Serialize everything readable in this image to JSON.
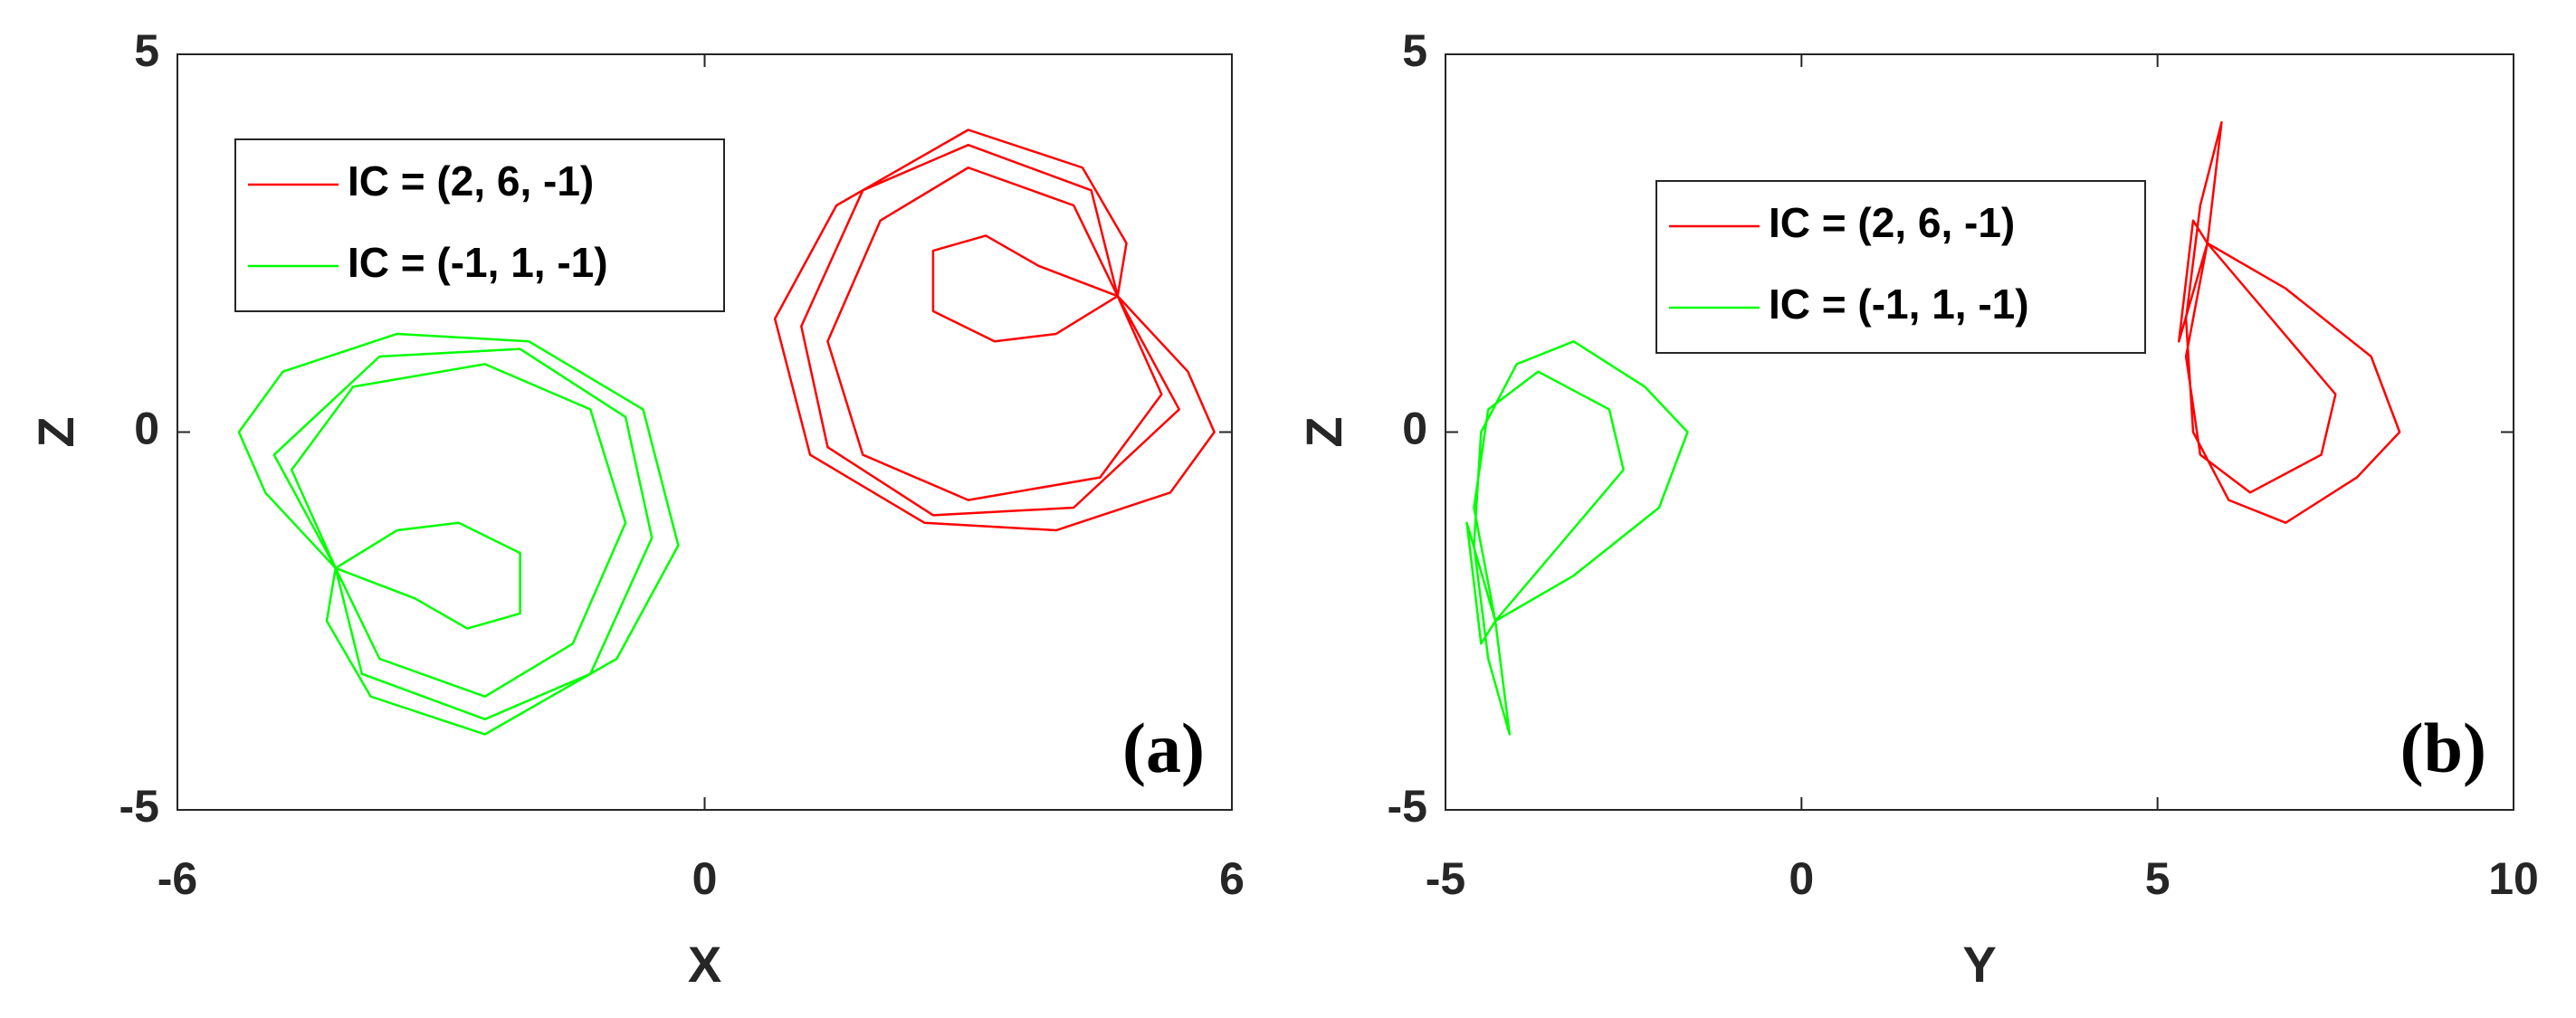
{
  "chart_data": [
    {
      "type": "line",
      "xlabel": "X",
      "ylabel": "Z",
      "annotation": "(a)",
      "xlim": [
        -6,
        6
      ],
      "ylim": [
        -5,
        5
      ],
      "xticks": [
        -6,
        0,
        6
      ],
      "yticks": [
        -5,
        0,
        5
      ],
      "legend": "upper left",
      "series": [
        {
          "name": "IC = (2, 6, -1)",
          "color": "#ff0000",
          "x": [
            4.7,
            5.5,
            5.8,
            5.3,
            4.0,
            2.5,
            1.2,
            0.8,
            1.5,
            3.0,
            4.3,
            4.8,
            4.7,
            5.2,
            4.5,
            3.0,
            1.8,
            1.4,
            2.0,
            3.0,
            4.2,
            4.7,
            4.0,
            3.3,
            2.6,
            2.6,
            3.2,
            3.8,
            4.7,
            5.4,
            4.2,
            2.6,
            1.4,
            1.1,
            1.8,
            3.0,
            4.4,
            4.7
          ],
          "values": [
            1.8,
            0.8,
            0.0,
            -0.8,
            -1.3,
            -1.2,
            -0.3,
            1.5,
            3.0,
            4.0,
            3.5,
            2.5,
            1.8,
            0.5,
            -0.6,
            -0.9,
            -0.3,
            1.2,
            2.8,
            3.5,
            3.0,
            1.8,
            1.3,
            1.2,
            1.6,
            2.4,
            2.6,
            2.2,
            1.8,
            0.3,
            -1.0,
            -1.1,
            -0.2,
            1.4,
            3.2,
            3.8,
            3.2,
            1.8
          ]
        },
        {
          "name": "IC = (-1, 1, -1)",
          "color": "#00ff00",
          "x": [
            -4.2,
            -5.0,
            -5.3,
            -4.8,
            -3.5,
            -2.0,
            -0.7,
            -0.3,
            -1.0,
            -2.5,
            -3.8,
            -4.3,
            -4.2,
            -4.7,
            -4.0,
            -2.5,
            -1.3,
            -0.9,
            -1.5,
            -2.5,
            -3.7,
            -4.2,
            -3.5,
            -2.8,
            -2.1,
            -2.1,
            -2.7,
            -3.3,
            -4.2,
            -4.9,
            -3.7,
            -2.1,
            -0.9,
            -0.6,
            -1.3,
            -2.5,
            -3.9,
            -4.2
          ],
          "values": [
            -1.8,
            -0.8,
            0.0,
            0.8,
            1.3,
            1.2,
            0.3,
            -1.5,
            -3.0,
            -4.0,
            -3.5,
            -2.5,
            -1.8,
            -0.5,
            0.6,
            0.9,
            0.3,
            -1.2,
            -2.8,
            -3.5,
            -3.0,
            -1.8,
            -1.3,
            -1.2,
            -1.6,
            -2.4,
            -2.6,
            -2.2,
            -1.8,
            -0.3,
            1.0,
            1.1,
            0.2,
            -1.4,
            -3.2,
            -3.8,
            -3.2,
            -1.8
          ]
        }
      ]
    },
    {
      "type": "line",
      "xlabel": "Y",
      "ylabel": "Z",
      "annotation": "(b)",
      "xlim": [
        -5,
        10
      ],
      "ylim": [
        -5,
        5
      ],
      "xticks": [
        -5,
        0,
        5,
        10
      ],
      "yticks": [
        -5,
        0,
        5
      ],
      "legend": "upper center",
      "series": [
        {
          "name": "IC = (2, 6, -1)",
          "color": "#ff0000",
          "x": [
            5.7,
            5.9,
            5.6,
            5.4,
            5.5,
            6.0,
            6.8,
            7.8,
            8.4,
            8.0,
            6.8,
            5.7,
            5.4,
            5.6,
            6.3,
            7.3,
            7.5,
            6.6,
            5.7,
            5.3,
            5.5,
            5.7
          ],
          "values": [
            2.5,
            4.1,
            3.0,
            1.5,
            0.0,
            -0.9,
            -1.2,
            -0.6,
            0.0,
            1.0,
            1.9,
            2.5,
            1.0,
            -0.3,
            -0.8,
            -0.3,
            0.5,
            1.5,
            2.5,
            1.2,
            2.8,
            2.5
          ]
        },
        {
          "name": "IC = (-1, 1, -1)",
          "color": "#00ff00",
          "x": [
            -4.3,
            -4.1,
            -4.4,
            -4.6,
            -4.5,
            -4.0,
            -3.2,
            -2.2,
            -1.6,
            -2.0,
            -3.2,
            -4.3,
            -4.6,
            -4.4,
            -3.7,
            -2.7,
            -2.5,
            -3.4,
            -4.3,
            -4.7,
            -4.5,
            -4.3
          ],
          "values": [
            -2.5,
            -4.0,
            -3.0,
            -1.5,
            0.0,
            0.9,
            1.2,
            0.6,
            0.0,
            -1.0,
            -1.9,
            -2.5,
            -1.0,
            0.3,
            0.8,
            0.3,
            -0.5,
            -1.5,
            -2.5,
            -1.2,
            -2.8,
            -2.5
          ]
        }
      ]
    }
  ]
}
